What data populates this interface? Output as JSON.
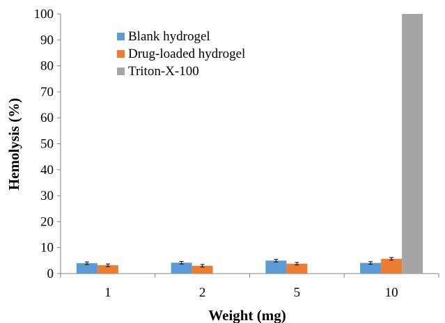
{
  "chart_data": {
    "type": "bar",
    "title": "",
    "xlabel": "Weight (mg)",
    "ylabel": "Hemolysis (%)",
    "categories": [
      "1",
      "2",
      "5",
      "10"
    ],
    "ylim": [
      0,
      100
    ],
    "yticks": [
      0,
      10,
      20,
      30,
      40,
      50,
      60,
      70,
      80,
      90,
      100
    ],
    "grid": false,
    "legend_position": "top-left",
    "series": [
      {
        "name": "Blank hydrogel",
        "color": "#5b9bd5",
        "values": [
          4.0,
          4.2,
          5.0,
          4.1
        ],
        "errors": [
          0.5,
          0.5,
          0.5,
          0.5
        ]
      },
      {
        "name": "Drug-loaded hydrogel",
        "color": "#ed7d31",
        "values": [
          3.2,
          3.0,
          3.8,
          5.7
        ],
        "errors": [
          0.5,
          0.5,
          0.5,
          0.5
        ]
      },
      {
        "name": "Triton-X-100",
        "color": "#a5a5a5",
        "values": [
          null,
          null,
          null,
          100
        ],
        "errors": [
          null,
          null,
          null,
          null
        ]
      }
    ]
  }
}
